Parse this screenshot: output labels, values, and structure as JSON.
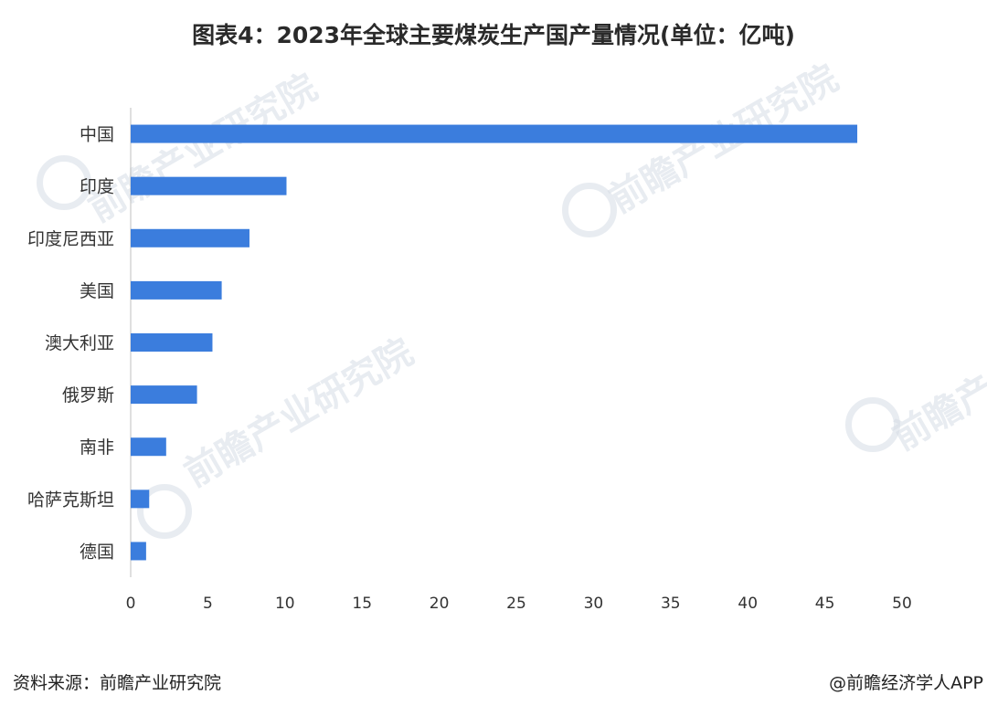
{
  "title": "图表4：2023年全球主要煤炭生产国产量情况(单位：亿吨)",
  "watermark_text": "前瞻产业研究院",
  "footer": {
    "source": "资料来源：前瞻产业研究院",
    "credit": "@前瞻经济学人APP"
  },
  "colors": {
    "bar": "#3b7ddd",
    "axis": "#bfbfbf",
    "text": "#333333"
  },
  "chart_data": {
    "type": "bar",
    "orientation": "horizontal",
    "title": "图表4：2023年全球主要煤炭生产国产量情况(单位：亿吨)",
    "xlabel": "",
    "ylabel": "",
    "xlim": [
      0,
      50
    ],
    "xticks": [
      0,
      5,
      10,
      15,
      20,
      25,
      30,
      35,
      40,
      45,
      50
    ],
    "grid": false,
    "categories": [
      "中国",
      "印度",
      "印度尼西亚",
      "美国",
      "澳大利亚",
      "俄罗斯",
      "南非",
      "哈萨克斯坦",
      "德国"
    ],
    "values": [
      47.1,
      10.1,
      7.7,
      5.9,
      5.3,
      4.3,
      2.3,
      1.2,
      1.0
    ]
  }
}
